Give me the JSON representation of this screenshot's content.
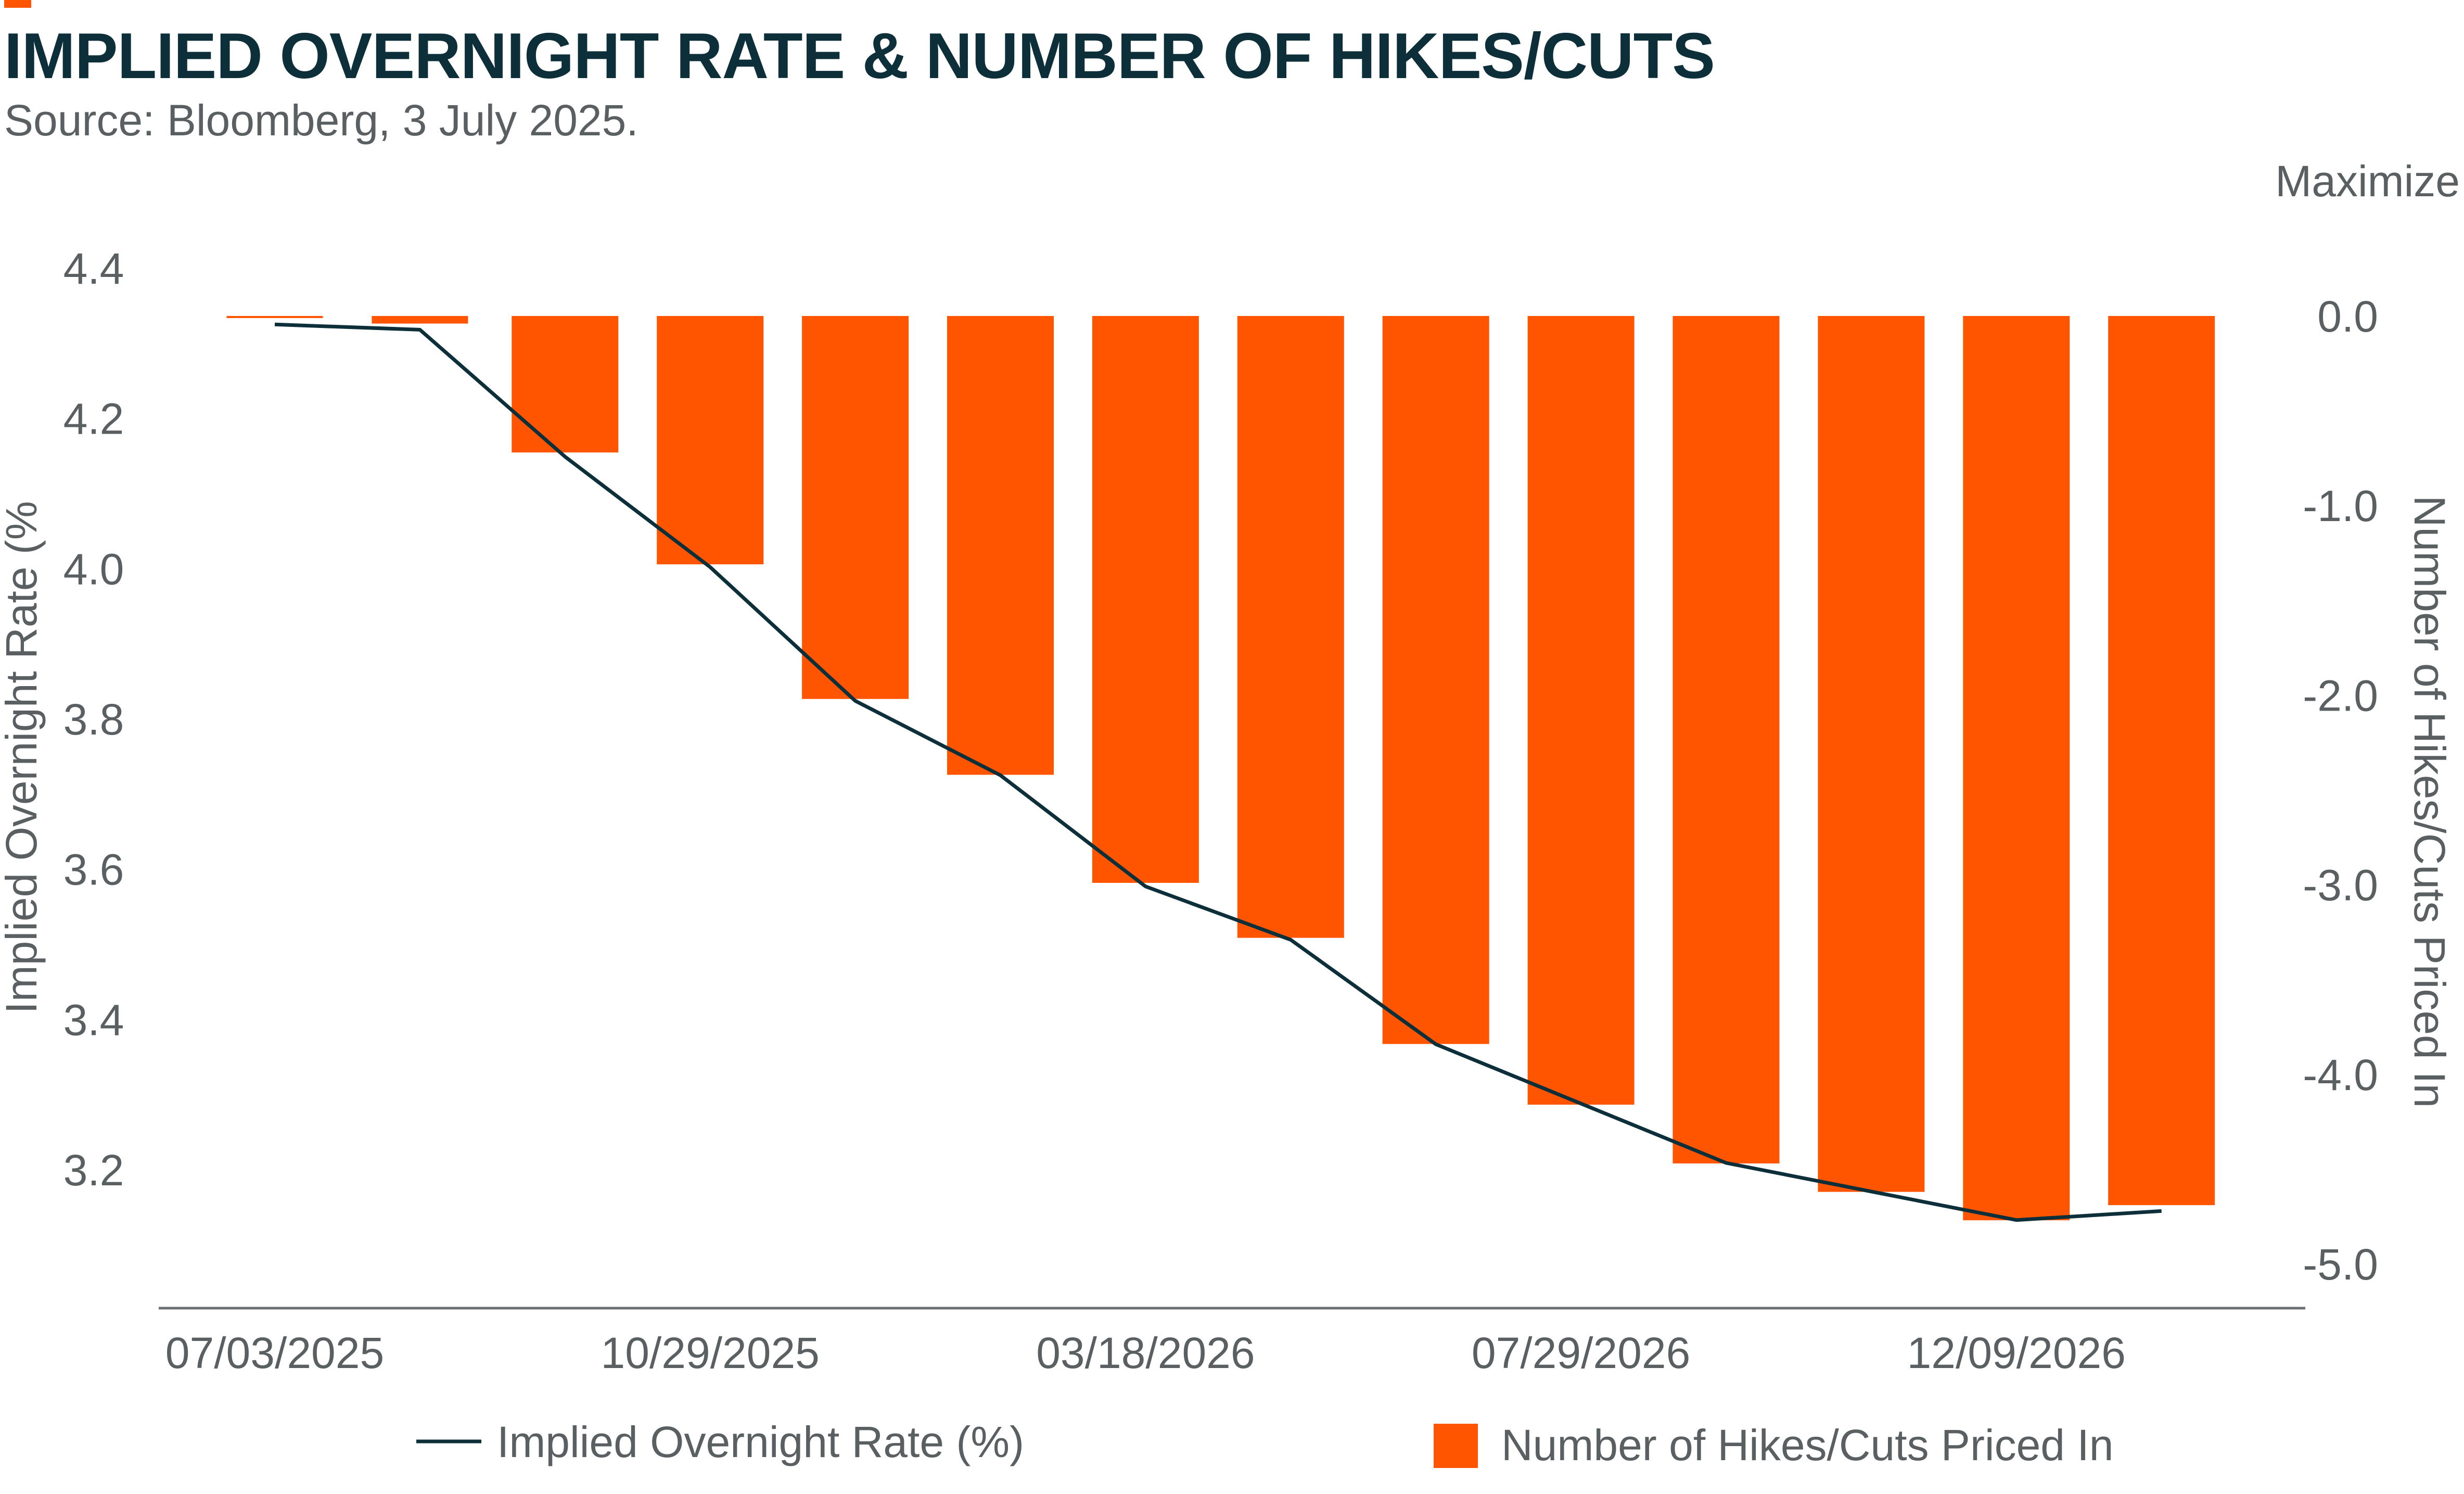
{
  "header": {
    "title": "IMPLIED OVERNIGHT RATE & NUMBER OF HIKES/CUTS",
    "subtitle": "Source: Bloomberg, 3 July 2025."
  },
  "toolbar": {
    "maximize_label": "Maximize"
  },
  "colors": {
    "title": "#0d2f3a",
    "text": "#5a5f61",
    "bar": "#ff5500",
    "line": "#0d2f3a",
    "axis": "#6d7072",
    "accent": "#ff5500"
  },
  "chart_data": {
    "type": "bar",
    "title": "IMPLIED OVERNIGHT RATE & NUMBER OF HIKES/CUTS",
    "subtitle": "Source: Bloomberg, 3 July 2025.",
    "x_tick_labels": [
      "07/03/2025",
      "10/29/2025",
      "03/18/2026",
      "07/29/2026",
      "12/09/2026"
    ],
    "left_axis": {
      "label": "Implied Overnight Rate (%",
      "ylim": [
        3.05,
        4.4
      ],
      "ticks": [
        "4.4",
        "4.2",
        "4.0",
        "3.8",
        "3.6",
        "3.4",
        "3.2"
      ]
    },
    "right_axis": {
      "label": "Number of Hikes/Cuts Priced In",
      "ylim": [
        -5.0,
        0.0
      ],
      "ticks": [
        "0.0",
        "-1.0",
        "-2.0",
        "-3.0",
        "-4.0",
        "-5.0"
      ]
    },
    "series": [
      {
        "name": "Number of Hikes/Cuts Priced In",
        "type": "bar",
        "axis": "right",
        "values": [
          -0.01,
          -0.04,
          -0.72,
          -1.31,
          -2.02,
          -2.42,
          -2.99,
          -3.28,
          -3.84,
          -4.16,
          -4.47,
          -4.62,
          -4.77,
          -4.69
        ]
      },
      {
        "name": "Implied Overnight Rate (%)",
        "type": "line",
        "axis": "left",
        "values": [
          4.325,
          4.318,
          4.149,
          4.002,
          3.824,
          3.725,
          3.577,
          3.506,
          3.367,
          3.288,
          3.209,
          3.171,
          3.133,
          3.145
        ]
      }
    ],
    "legend": {
      "placement": "bottom",
      "entries": [
        "Implied Overnight Rate (%)",
        "Number of Hikes/Cuts Priced In"
      ]
    }
  }
}
